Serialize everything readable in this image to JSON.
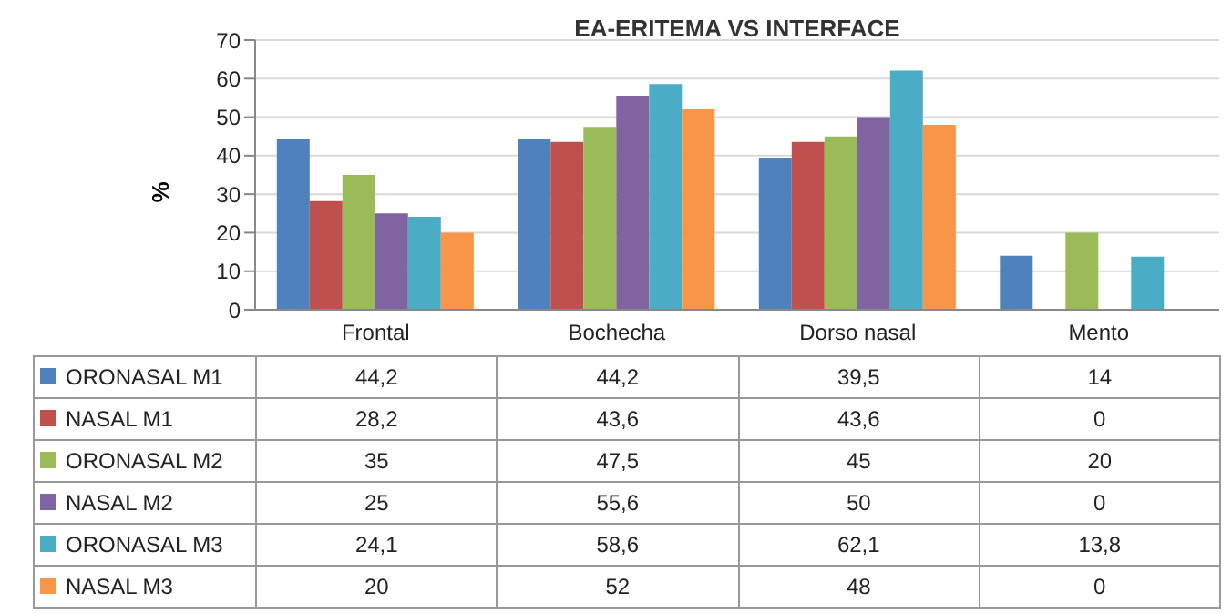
{
  "chart_data": {
    "type": "bar",
    "title": "EA-ERITEMA VS INTERFACE",
    "ylabel": "%",
    "categories": [
      "Frontal",
      "Bochecha",
      "Dorso nasal",
      "Mento"
    ],
    "series": [
      {
        "name": "ORONASAL M1",
        "color": "#4f81bd",
        "values": [
          44.2,
          44.2,
          39.5,
          14
        ],
        "value_labels": [
          "44,2",
          "44,2",
          "39,5",
          "14"
        ]
      },
      {
        "name": "NASAL M1",
        "color": "#c0504d",
        "values": [
          28.2,
          43.6,
          43.6,
          0
        ],
        "value_labels": [
          "28,2",
          "43,6",
          "43,6",
          "0"
        ]
      },
      {
        "name": "ORONASAL M2",
        "color": "#9bbb59",
        "values": [
          35,
          47.5,
          45,
          20
        ],
        "value_labels": [
          "35",
          "47,5",
          "45",
          "20"
        ]
      },
      {
        "name": "NASAL M2",
        "color": "#8064a2",
        "values": [
          25,
          55.6,
          50,
          0
        ],
        "value_labels": [
          "25",
          "55,6",
          "50",
          "0"
        ]
      },
      {
        "name": "ORONASAL M3",
        "color": "#4bacc6",
        "values": [
          24.1,
          58.6,
          62.1,
          13.8
        ],
        "value_labels": [
          "24,1",
          "58,6",
          "62,1",
          "13,8"
        ]
      },
      {
        "name": "NASAL M3",
        "color": "#f79646",
        "values": [
          20,
          52,
          48,
          0
        ],
        "value_labels": [
          "20",
          "52",
          "48",
          "0"
        ]
      }
    ],
    "ylim": [
      0,
      70
    ],
    "yticks": [
      0,
      10,
      20,
      30,
      40,
      50,
      60,
      70
    ],
    "grid": "y",
    "legend": "bottom"
  }
}
